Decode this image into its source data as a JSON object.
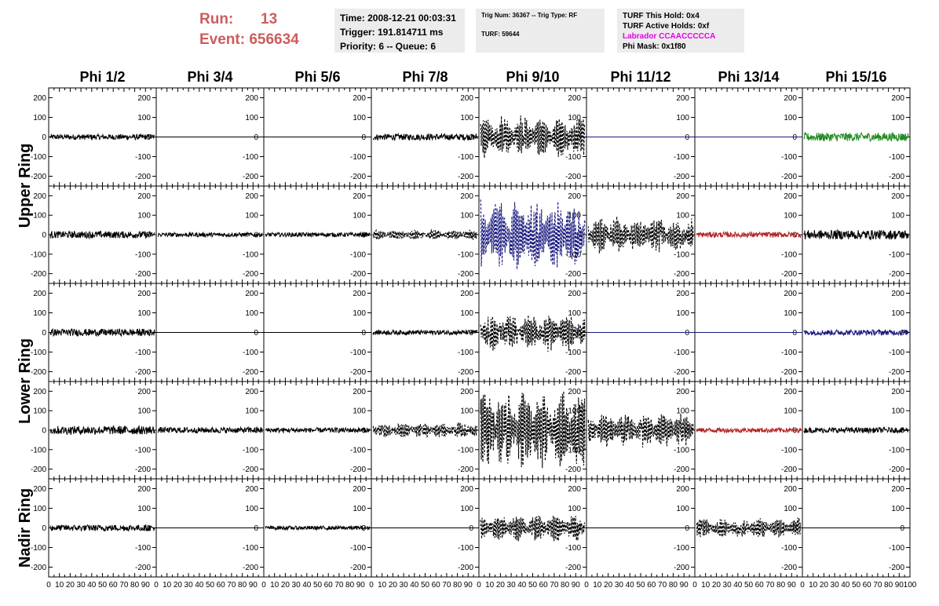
{
  "header": {
    "run_label": "Run:",
    "run_value": "13",
    "event_label": "Event:",
    "event_value": "656634",
    "time": "Time: 2008-12-21 00:03:31",
    "trigger": "Trigger: 191.814711 ms",
    "priority": "Priority: 6 -- Queue: 6",
    "trig_num": "Trig Num: 36367 -- Trig Type: RF",
    "turf": "TURF: 59644",
    "turf_this_hold": "TURF This Hold: 0x4",
    "turf_active_holds": "TURF Active Holds: 0xf",
    "labrador": "Labrador CCAACCCCCA",
    "phi_mask": "Phi Mask: 0x1f80"
  },
  "colors": {
    "run_text": "#cd5c5c",
    "labrador_text": "#e600e6",
    "info_bg": "#ececec",
    "trace_black": "#000000",
    "trace_blue": "#1a1a80",
    "trace_red": "#b22222",
    "trace_green": "#228b22"
  },
  "chart_data": {
    "type": "line",
    "columns": [
      "Phi 1/2",
      "Phi 3/4",
      "Phi 5/6",
      "Phi 7/8",
      "Phi 9/10",
      "Phi 11/12",
      "Phi 13/14",
      "Phi 15/16"
    ],
    "rows": [
      {
        "name": "Upper Ring",
        "subrows": 2
      },
      {
        "name": "Lower Ring",
        "subrows": 2
      },
      {
        "name": "Nadir Ring",
        "subrows": 1
      }
    ],
    "xlim": [
      0,
      100
    ],
    "xticks": [
      "0",
      "10",
      "20",
      "30",
      "40",
      "50",
      "60",
      "70",
      "80",
      "90",
      "100"
    ],
    "ylim": [
      -250,
      250
    ],
    "yticks": [
      "200",
      "100",
      "0",
      "-100",
      "-200"
    ],
    "panels": [
      [
        {
          "style": "solid",
          "color": "black",
          "amp": 14
        },
        {
          "style": "flat",
          "color": "black",
          "amp": 0
        },
        {
          "style": "flat",
          "color": "black",
          "amp": 0
        },
        {
          "style": "solid",
          "color": "black",
          "amp": 16
        },
        {
          "style": "dashed",
          "color": "black",
          "amp": 115
        },
        {
          "style": "flat",
          "color": "blue",
          "amp": 0
        },
        {
          "style": "flat",
          "color": "blue",
          "amp": 0
        },
        {
          "style": "solid",
          "color": "green",
          "amp": 22
        }
      ],
      [
        {
          "style": "solid",
          "color": "black",
          "amp": 18
        },
        {
          "style": "solid",
          "color": "black",
          "amp": 11
        },
        {
          "style": "solid",
          "color": "black",
          "amp": 11
        },
        {
          "style": "dashed",
          "color": "black",
          "amp": 28
        },
        {
          "style": "dashed",
          "color": "blue",
          "amp": 190
        },
        {
          "style": "dashed",
          "color": "black",
          "amp": 100
        },
        {
          "style": "solid",
          "color": "red",
          "amp": 14
        },
        {
          "style": "solid",
          "color": "black",
          "amp": 24
        }
      ],
      [
        {
          "style": "solid",
          "color": "black",
          "amp": 18
        },
        {
          "style": "flat",
          "color": "black",
          "amp": 0
        },
        {
          "style": "flat",
          "color": "black",
          "amp": 0
        },
        {
          "style": "solid",
          "color": "black",
          "amp": 12
        },
        {
          "style": "dashed",
          "color": "black",
          "amp": 100
        },
        {
          "style": "flat",
          "color": "blue",
          "amp": 0
        },
        {
          "style": "flat",
          "color": "blue",
          "amp": 0
        },
        {
          "style": "solid",
          "color": "blue",
          "amp": 14
        }
      ],
      [
        {
          "style": "solid",
          "color": "black",
          "amp": 22
        },
        {
          "style": "solid",
          "color": "black",
          "amp": 15
        },
        {
          "style": "solid",
          "color": "black",
          "amp": 13
        },
        {
          "style": "dashed",
          "color": "black",
          "amp": 45
        },
        {
          "style": "dashed",
          "color": "black",
          "amp": 220
        },
        {
          "style": "dashed",
          "color": "black",
          "amp": 95
        },
        {
          "style": "solid",
          "color": "red",
          "amp": 12
        },
        {
          "style": "solid",
          "color": "black",
          "amp": 14
        }
      ],
      [
        {
          "style": "solid",
          "color": "black",
          "amp": 16
        },
        {
          "style": "flat",
          "color": "black",
          "amp": 0
        },
        {
          "style": "solid",
          "color": "black",
          "amp": 10
        },
        {
          "style": "flat",
          "color": "black",
          "amp": 0
        },
        {
          "style": "dashed",
          "color": "black",
          "amp": 75
        },
        {
          "style": "flat",
          "color": "black",
          "amp": 0
        },
        {
          "style": "dashed",
          "color": "black",
          "amp": 55
        },
        {
          "style": "flat",
          "color": "black",
          "amp": 0
        }
      ]
    ]
  }
}
